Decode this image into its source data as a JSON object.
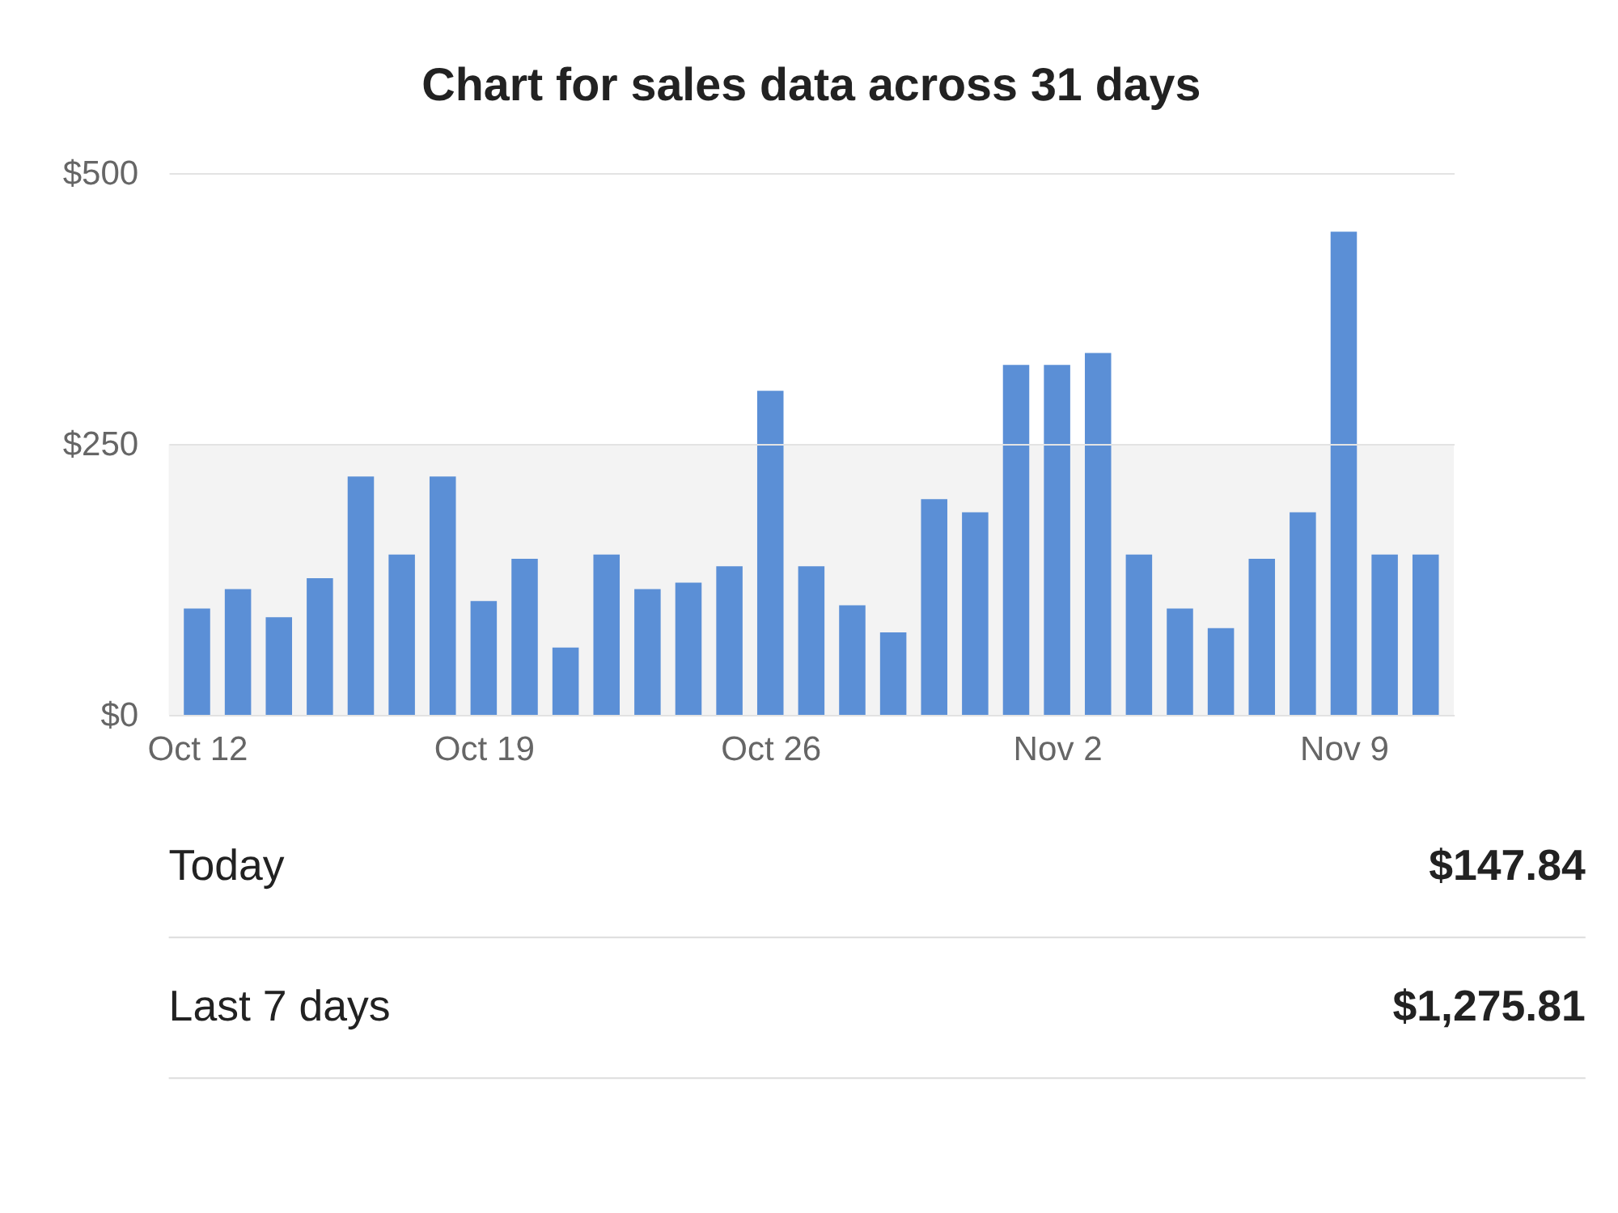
{
  "chart_data": {
    "type": "bar",
    "title": "Chart for sales data across 31 days",
    "categories": [
      "Oct 12",
      null,
      null,
      null,
      null,
      null,
      null,
      "Oct 19",
      null,
      null,
      null,
      null,
      null,
      null,
      "Oct 26",
      null,
      null,
      null,
      null,
      null,
      null,
      "Nov 2",
      null,
      null,
      null,
      null,
      null,
      null,
      "Nov 9",
      null,
      null
    ],
    "values": [
      98,
      116,
      90,
      126,
      220,
      148,
      220,
      105,
      144,
      62,
      148,
      116,
      122,
      137,
      299,
      137,
      101,
      76,
      199,
      187,
      323,
      323,
      334,
      148,
      98,
      80,
      144,
      187,
      446,
      148,
      148
    ],
    "color": "#5b8fd6",
    "ylim": [
      0,
      500
    ],
    "yticks": [
      {
        "value": 0,
        "label": "$0"
      },
      {
        "value": 250,
        "label": "$250"
      },
      {
        "value": 500,
        "label": "$500"
      }
    ],
    "grid": "y",
    "bands": [
      {
        "axis": "y",
        "from": 0,
        "to": 250,
        "color": "#f3f3f3"
      }
    ],
    "annotations": [
      "Today",
      "$147.84",
      "Last 7 days",
      "$1,275.81"
    ]
  }
}
